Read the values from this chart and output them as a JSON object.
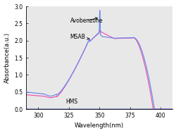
{
  "title": "",
  "xlabel": "Wavelength(nm)",
  "ylabel": "Absorbance(a.u.)",
  "xlim": [
    290,
    410
  ],
  "ylim": [
    0.0,
    3.0
  ],
  "xticks": [
    300,
    325,
    350,
    375,
    400
  ],
  "yticks": [
    0.0,
    0.5,
    1.0,
    1.5,
    2.0,
    2.5,
    3.0
  ],
  "label_fontsize": 6,
  "tick_fontsize": 5.5,
  "annotation_fontsize": 5.5,
  "avobenzone_color": "#6688ee",
  "msab_color": "#ee55aa",
  "hms_color": "#8899cc",
  "background_color": "#e8e8e8"
}
